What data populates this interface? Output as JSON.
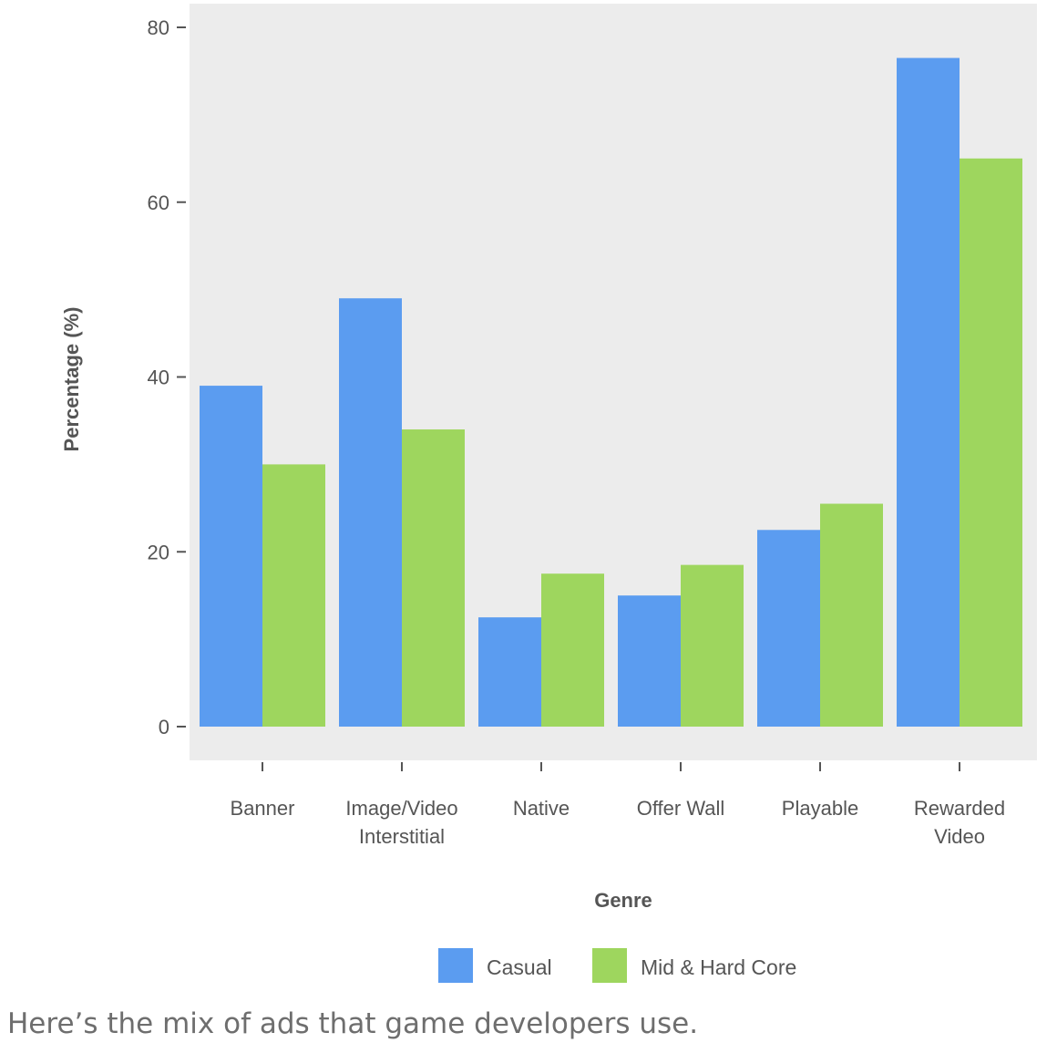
{
  "chart_data": {
    "type": "bar",
    "categories": [
      [
        "Banner"
      ],
      [
        "Image/Video",
        "Interstitial"
      ],
      [
        "Native"
      ],
      [
        "Offer Wall"
      ],
      [
        "Playable"
      ],
      [
        "Rewarded",
        "Video"
      ]
    ],
    "series": [
      {
        "name": "Casual",
        "values": [
          39,
          49,
          12.5,
          15,
          22.5,
          76.5
        ],
        "color": "#5b9cf0"
      },
      {
        "name": "Mid & Hard Core",
        "values": [
          30,
          34,
          17.5,
          18.5,
          25.5,
          65
        ],
        "color": "#9ed65e"
      }
    ],
    "xlabel": "Genre",
    "ylabel": "Percentage (%)",
    "ylim": [
      0,
      80
    ],
    "yticks": [
      0,
      20,
      40,
      60,
      80
    ],
    "legend_position": "bottom",
    "plot_background": "#ececec"
  },
  "caption": "Here’s the mix of ads that game developers use."
}
